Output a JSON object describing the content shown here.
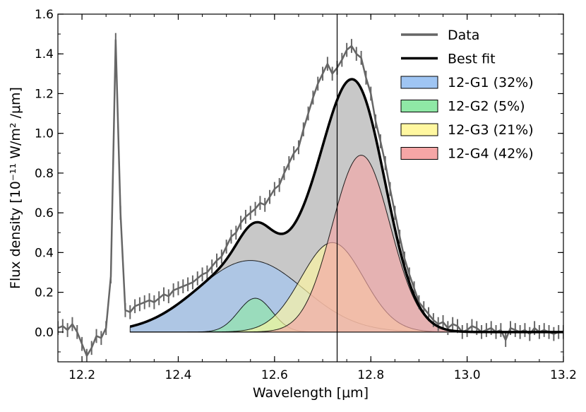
{
  "chart_data": {
    "type": "area",
    "xlabel": "Wavelength [μm]",
    "ylabel": "Flux density [10⁻¹¹ W/m² /μm]",
    "xlim": [
      12.15,
      13.2
    ],
    "ylim": [
      -0.15,
      1.6
    ],
    "xticks": [
      12.2,
      12.4,
      12.6,
      12.8,
      13.0,
      13.2
    ],
    "xtick_labels": [
      "12.2",
      "12.4",
      "12.6",
      "12.8",
      "13.0",
      "13.2"
    ],
    "yticks": [
      0.0,
      0.2,
      0.4,
      0.6,
      0.8,
      1.0,
      1.2,
      1.4,
      1.6
    ],
    "ytick_labels": [
      "0.0",
      "0.2",
      "0.4",
      "0.6",
      "0.8",
      "1.0",
      "1.2",
      "1.4",
      "1.6"
    ],
    "vline_x": 12.73,
    "grid": false,
    "legend_position": "top-right",
    "colors": {
      "data": "#666666",
      "best_fit": "#000000",
      "total_fill": "#c8c8c8",
      "g1": "#9fc5f3",
      "g2": "#8fe8a6",
      "g3": "#fff7a0",
      "g4": "#f5a6a6"
    },
    "legend": [
      {
        "label": "Data",
        "kind": "line",
        "color": "#666666"
      },
      {
        "label": "Best fit",
        "kind": "line",
        "color": "#000000"
      },
      {
        "label": "12-G1 (32%)",
        "kind": "patch",
        "color": "#9fc5f3"
      },
      {
        "label": "12-G2 (5%)",
        "kind": "patch",
        "color": "#8fe8a6"
      },
      {
        "label": "12-G3 (21%)",
        "kind": "patch",
        "color": "#fff7a0"
      },
      {
        "label": "12-G4 (42%)",
        "kind": "patch",
        "color": "#f5a6a6"
      }
    ],
    "fit_range": [
      12.3,
      13.2
    ],
    "components": [
      {
        "name": "12-G1 (32%)",
        "center": 12.55,
        "amplitude": 0.36,
        "sigma": 0.11,
        "color": "#9fc5f3"
      },
      {
        "name": "12-G2 (5%)",
        "center": 12.56,
        "amplitude": 0.17,
        "sigma": 0.035,
        "color": "#8fe8a6"
      },
      {
        "name": "12-G3 (21%)",
        "center": 12.72,
        "amplitude": 0.45,
        "sigma": 0.065,
        "color": "#fff7a0"
      },
      {
        "name": "12-G4 (42%)",
        "center": 12.78,
        "amplitude": 0.89,
        "sigma": 0.06,
        "color": "#f5a6a6"
      }
    ],
    "data_series": {
      "name": "Data",
      "x": [
        12.15,
        12.16,
        12.17,
        12.18,
        12.19,
        12.2,
        12.21,
        12.22,
        12.23,
        12.24,
        12.25,
        12.26,
        12.27,
        12.28,
        12.29,
        12.3,
        12.31,
        12.32,
        12.33,
        12.34,
        12.35,
        12.36,
        12.37,
        12.38,
        12.39,
        12.4,
        12.41,
        12.42,
        12.43,
        12.44,
        12.45,
        12.46,
        12.47,
        12.48,
        12.49,
        12.5,
        12.51,
        12.52,
        12.53,
        12.54,
        12.55,
        12.56,
        12.57,
        12.58,
        12.59,
        12.6,
        12.61,
        12.62,
        12.63,
        12.64,
        12.65,
        12.66,
        12.67,
        12.68,
        12.69,
        12.7,
        12.71,
        12.72,
        12.73,
        12.74,
        12.75,
        12.76,
        12.77,
        12.78,
        12.79,
        12.8,
        12.81,
        12.82,
        12.83,
        12.84,
        12.85,
        12.86,
        12.87,
        12.88,
        12.89,
        12.9,
        12.91,
        12.92,
        12.93,
        12.94,
        12.95,
        12.96,
        12.97,
        12.98,
        12.99,
        13.0,
        13.01,
        13.02,
        13.03,
        13.04,
        13.05,
        13.06,
        13.07,
        13.08,
        13.09,
        13.1,
        13.11,
        13.12,
        13.13,
        13.14,
        13.15,
        13.16,
        13.17,
        13.18,
        13.19,
        13.2
      ],
      "y": [
        0.02,
        0.03,
        0.01,
        0.04,
        0.0,
        -0.06,
        -0.12,
        -0.08,
        -0.02,
        -0.03,
        0.02,
        0.28,
        1.47,
        0.6,
        0.11,
        0.1,
        0.13,
        0.14,
        0.15,
        0.16,
        0.15,
        0.17,
        0.19,
        0.18,
        0.21,
        0.22,
        0.23,
        0.24,
        0.25,
        0.27,
        0.29,
        0.3,
        0.33,
        0.36,
        0.38,
        0.43,
        0.48,
        0.5,
        0.55,
        0.58,
        0.6,
        0.62,
        0.65,
        0.64,
        0.68,
        0.72,
        0.74,
        0.8,
        0.85,
        0.9,
        0.93,
        1.02,
        1.1,
        1.18,
        1.25,
        1.3,
        1.35,
        1.3,
        1.33,
        1.37,
        1.42,
        1.44,
        1.4,
        1.38,
        1.28,
        1.2,
        1.06,
        0.96,
        0.85,
        0.72,
        0.6,
        0.48,
        0.37,
        0.29,
        0.22,
        0.15,
        0.12,
        0.09,
        0.06,
        0.04,
        0.05,
        0.02,
        0.04,
        0.03,
        0.0,
        0.01,
        0.03,
        0.02,
        0.0,
        0.01,
        0.02,
        0.0,
        0.01,
        -0.04,
        0.02,
        0.01,
        0.0,
        0.01,
        -0.01,
        0.02,
        0.0,
        0.01,
        0.0,
        -0.01,
        0.0,
        0.0
      ],
      "yerr": 0.035
    }
  }
}
